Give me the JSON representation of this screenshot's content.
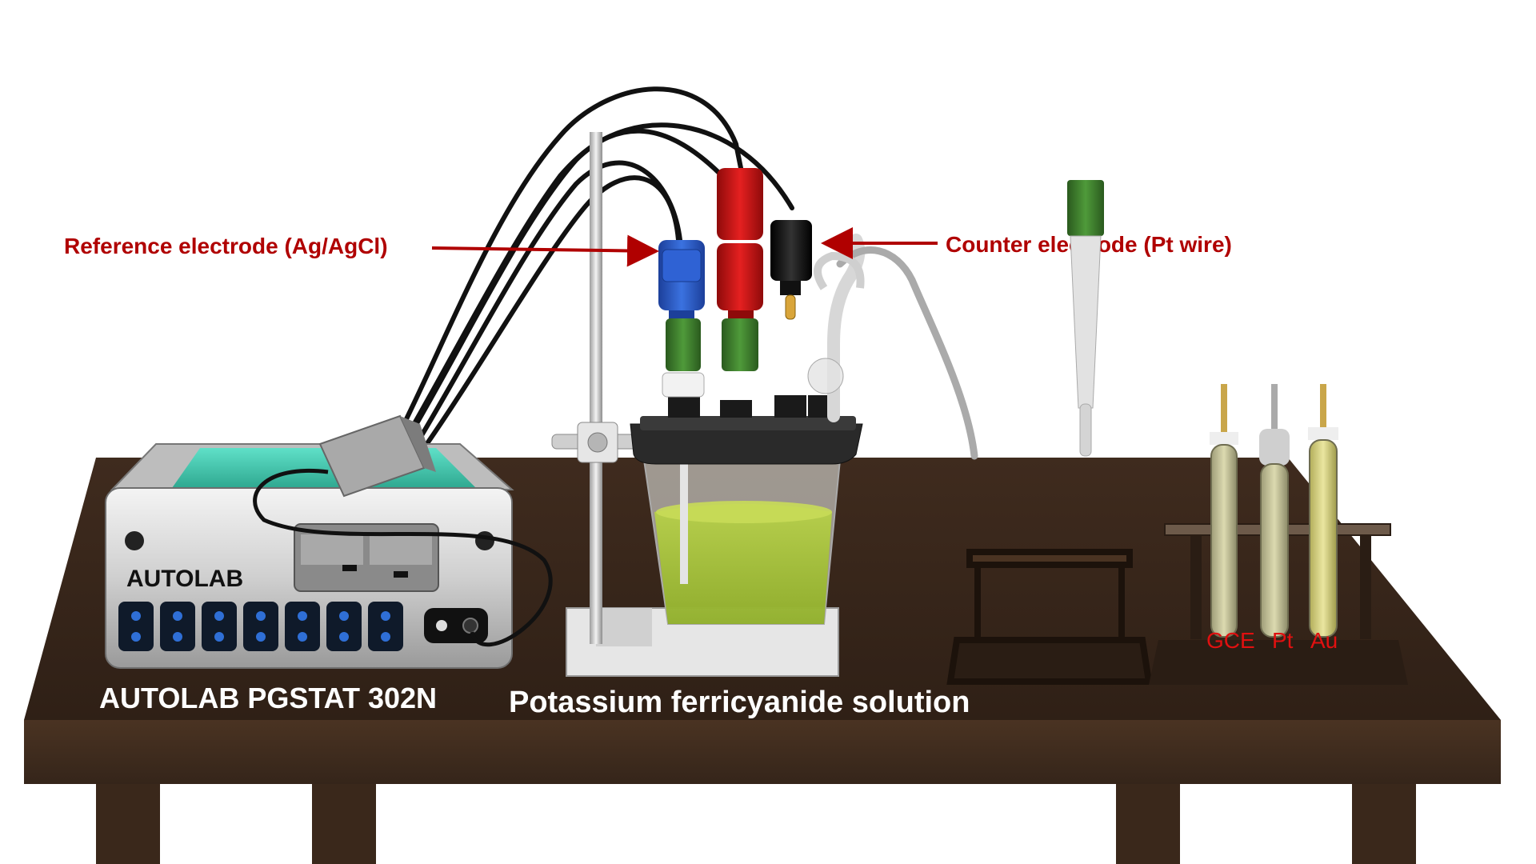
{
  "annotations": {
    "reference_electrode": "Reference electrode (Ag/AgCl)",
    "counter_electrode": "Counter electrode (Pt wire)"
  },
  "instrument": {
    "panel_brand": "AUTOLAB",
    "caption": "AUTOLAB PGSTAT 302N"
  },
  "cell": {
    "caption": "Potassium ferricyanide solution"
  },
  "electrodes_rack": {
    "labels": [
      "GCE",
      "Pt",
      "Au"
    ]
  },
  "colors": {
    "table_wood": "#3d2a1c",
    "table_edge": "#4a3322",
    "annotation_red": "#b00000",
    "electrode_label_red": "#e01010",
    "solution_green": "#a9c43a",
    "instrument_teal": "#3fcfb4",
    "plug_blue": "#2456c8",
    "plug_red": "#cc1010",
    "plug_black": "#111111",
    "plug_green": "#3b7a2c"
  }
}
